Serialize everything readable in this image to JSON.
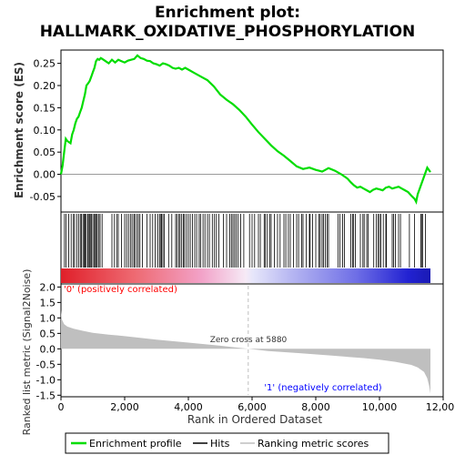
{
  "chart_data": {
    "type": "line",
    "title": "Enrichment plot:\nHALLMARK_OXIDATIVE_PHOSPHORYLATION",
    "title_lines": [
      "Enrichment plot:",
      "HALLMARK_OXIDATIVE_PHOSPHORYLATION"
    ],
    "top_panel": {
      "ylabel": "Enrichment score (ES)",
      "ylim": [
        -0.085,
        0.28
      ],
      "yticks": [
        -0.05,
        0.0,
        0.05,
        0.1,
        0.15,
        0.2,
        0.25
      ],
      "ytick_labels": [
        "-0.05",
        "0.00",
        "0.05",
        "0.10",
        "0.15",
        "0.20",
        "0.25"
      ],
      "es_curve": {
        "x": [
          0,
          50,
          100,
          150,
          200,
          300,
          350,
          400,
          450,
          500,
          550,
          600,
          650,
          700,
          750,
          800,
          850,
          900,
          950,
          1000,
          1050,
          1100,
          1150,
          1200,
          1250,
          1300,
          1400,
          1500,
          1600,
          1700,
          1800,
          1900,
          2000,
          2100,
          2200,
          2300,
          2400,
          2500,
          2600,
          2700,
          2800,
          2900,
          3000,
          3100,
          3200,
          3300,
          3400,
          3500,
          3600,
          3700,
          3800,
          3900,
          4000,
          4200,
          4400,
          4600,
          4800,
          5000,
          5200,
          5400,
          5600,
          5800,
          6000,
          6200,
          6400,
          6600,
          6800,
          7000,
          7200,
          7400,
          7600,
          7800,
          8000,
          8100,
          8200,
          8300,
          8400,
          8600,
          8800,
          9000,
          9100,
          9200,
          9300,
          9400,
          9500,
          9600,
          9700,
          9800,
          9900,
          10000,
          10100,
          10200,
          10300,
          10400,
          10500,
          10600,
          10700,
          10800,
          10900,
          11000,
          11100,
          11150,
          11200,
          11300,
          11400,
          11500,
          11600
        ],
        "y": [
          0.0,
          0.02,
          0.05,
          0.08,
          0.075,
          0.07,
          0.09,
          0.1,
          0.115,
          0.125,
          0.13,
          0.14,
          0.15,
          0.165,
          0.18,
          0.2,
          0.205,
          0.21,
          0.22,
          0.23,
          0.24,
          0.255,
          0.26,
          0.258,
          0.262,
          0.26,
          0.255,
          0.25,
          0.258,
          0.252,
          0.258,
          0.255,
          0.252,
          0.256,
          0.258,
          0.26,
          0.268,
          0.262,
          0.26,
          0.256,
          0.255,
          0.25,
          0.248,
          0.245,
          0.25,
          0.248,
          0.245,
          0.24,
          0.238,
          0.24,
          0.236,
          0.24,
          0.236,
          0.228,
          0.22,
          0.212,
          0.198,
          0.18,
          0.168,
          0.158,
          0.145,
          0.13,
          0.112,
          0.095,
          0.08,
          0.065,
          0.052,
          0.042,
          0.03,
          0.018,
          0.012,
          0.015,
          0.01,
          0.008,
          0.006,
          0.01,
          0.014,
          0.008,
          0.0,
          -0.01,
          -0.018,
          -0.025,
          -0.03,
          -0.028,
          -0.032,
          -0.036,
          -0.04,
          -0.035,
          -0.032,
          -0.034,
          -0.036,
          -0.03,
          -0.028,
          -0.032,
          -0.03,
          -0.028,
          -0.032,
          -0.036,
          -0.04,
          -0.048,
          -0.055,
          -0.062,
          -0.045,
          -0.025,
          -0.005,
          0.015,
          0.005
        ]
      }
    },
    "hits_panel": {
      "hit_positions": [
        110,
        160,
        240,
        320,
        390,
        430,
        500,
        560,
        610,
        640,
        690,
        730,
        760,
        790,
        840,
        860,
        900,
        920,
        960,
        1000,
        1040,
        1080,
        1110,
        1140,
        1190,
        1230,
        1290,
        1600,
        1680,
        1750,
        1800,
        1900,
        2000,
        2060,
        2120,
        2180,
        2230,
        2290,
        2320,
        2380,
        2430,
        2480,
        2560,
        2700,
        2800,
        2880,
        2960,
        3040,
        3100,
        3140,
        3160,
        3200,
        3240,
        3380,
        3480,
        3600,
        3640,
        3700,
        3740,
        3790,
        3840,
        3880,
        3940,
        4000,
        4060,
        4130,
        4200,
        4260,
        4340,
        4380,
        4460,
        4520,
        4600,
        4660,
        4750,
        4820,
        4880,
        4960,
        5100,
        5200,
        5300,
        5350,
        5400,
        5450,
        5500,
        5560,
        5640,
        5740,
        5920,
        6000,
        6080,
        6200,
        6260,
        6380,
        6420,
        6480,
        6560,
        6600,
        6700,
        6800,
        6880,
        7000,
        7060,
        7140,
        7200,
        7300,
        7400,
        7460,
        7560,
        7600,
        7700,
        7800,
        7820,
        7900,
        8000,
        8100,
        8140,
        8200,
        8240,
        8300,
        8360,
        8400,
        8700,
        8760,
        8840,
        8900,
        9100,
        9160,
        9180,
        9240,
        9400,
        9480,
        9520,
        9600,
        9640,
        9820,
        9900,
        9960,
        10000,
        10040,
        10120,
        10200,
        10220,
        10400,
        10440,
        10500,
        10600,
        10660,
        10940,
        11100,
        11300,
        11320,
        11360,
        11440
      ]
    },
    "ranked_panel": {
      "ylabel": "Ranked list metric (Signal2Noise)",
      "ylim": [
        -1.55,
        2.1
      ],
      "yticks": [
        -1.5,
        -1.0,
        -0.5,
        0.0,
        0.5,
        1.0,
        1.5,
        2.0
      ],
      "ytick_labels": [
        "-1.5",
        "-1.0",
        "-0.5",
        "0.0",
        "0.5",
        "1.0",
        "1.5",
        "2.0"
      ],
      "metric_curve": {
        "x": [
          0,
          30,
          100,
          200,
          400,
          700,
          1000,
          1500,
          2000,
          3000,
          4000,
          5000,
          5880,
          6500,
          7500,
          8500,
          9500,
          10000,
          10500,
          11000,
          11200,
          11400,
          11500,
          11560,
          11600
        ],
        "y": [
          1.25,
          0.95,
          0.8,
          0.72,
          0.65,
          0.58,
          0.52,
          0.46,
          0.41,
          0.3,
          0.2,
          0.1,
          0.0,
          -0.07,
          -0.14,
          -0.22,
          -0.3,
          -0.35,
          -0.42,
          -0.52,
          -0.6,
          -0.75,
          -0.95,
          -1.2,
          -1.45
        ]
      },
      "zero_cross_label": "Zero cross at 5880",
      "zero_cross_x": 5880,
      "pos_label": "'0' (positively correlated)",
      "neg_label": "'1' (negatively correlated)"
    },
    "xlabel": "Rank in Ordered Dataset",
    "xlim": [
      0,
      12000
    ],
    "xticks": [
      0,
      2000,
      4000,
      6000,
      8000,
      10000,
      12000
    ],
    "xtick_labels": [
      "0",
      "2,000",
      "4,000",
      "6,000",
      "8,000",
      "10,000",
      "12,000"
    ],
    "n_genes": 11600,
    "legend": {
      "placement": "bottom",
      "entries": [
        "Enrichment profile",
        "Hits",
        "Ranking metric scores"
      ]
    }
  },
  "colors": {
    "es_line": "#00dd00",
    "hits": "#000000",
    "metric_fill": "#bfbfbf",
    "zero_line": "#bfbfbf",
    "pos_label": "#ff0000",
    "neg_label": "#0000ff",
    "axis": "#000000"
  }
}
